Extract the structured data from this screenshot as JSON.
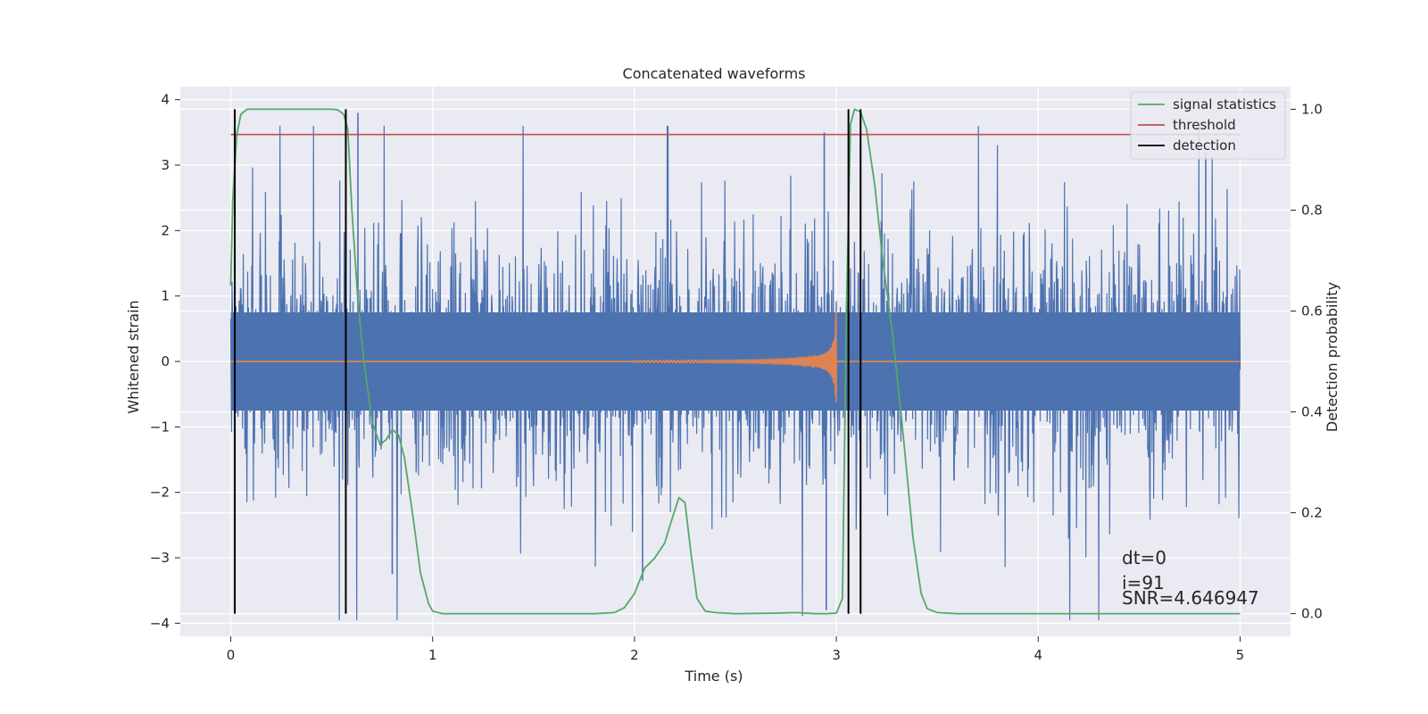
{
  "chart_data": {
    "type": "line",
    "title": "Concatenated waveforms",
    "xlabel": "Time (s)",
    "ylabel": "Whitened strain",
    "y2label": "Detection probability",
    "xlim": [
      -0.25,
      5.25
    ],
    "ylim": [
      -4.2,
      4.2
    ],
    "y2lim": [
      -0.045,
      1.045
    ],
    "grid": true,
    "legend_position": "top-right",
    "x_ticks": [
      0,
      1,
      2,
      3,
      4,
      5
    ],
    "y_ticks": [
      -4,
      -3,
      -2,
      -1,
      0,
      1,
      2,
      3,
      4
    ],
    "y2_ticks": [
      0.0,
      0.2,
      0.4,
      0.6,
      0.8,
      1.0
    ],
    "x_tick_labels": [
      "0",
      "1",
      "2",
      "3",
      "4",
      "5"
    ],
    "y_tick_labels": [
      "−4",
      "−3",
      "−2",
      "−1",
      "0",
      "1",
      "2",
      "3",
      "4"
    ],
    "y2_tick_labels": [
      "0.0",
      "0.2",
      "0.4",
      "0.6",
      "0.8",
      "1.0"
    ],
    "colors": {
      "strain": "#4c72b0",
      "injected": "#dd8452",
      "signal_statistics": "#55a868",
      "threshold": "#c44e52",
      "detection": "#000000",
      "axes_bg": "#eaeaf2",
      "grid": "#ffffff"
    },
    "series": [
      {
        "name": "",
        "description_key": "whitened-strain-noise",
        "x_range": [
          0,
          5
        ],
        "envelope": {
          "core_amplitude": 0.75,
          "peak_max": 3.8,
          "peak_min": -3.95
        },
        "notable_spikes": [
          {
            "x": 0.63,
            "y": 3.8
          },
          {
            "x": 0.8,
            "y": -3.25
          },
          {
            "x": 2.04,
            "y": -3.35
          },
          {
            "x": 2.94,
            "y": 3.5
          },
          {
            "x": 2.95,
            "y": -3.8
          },
          {
            "x": 4.83,
            "y": 3.2
          }
        ]
      },
      {
        "name": "",
        "description_key": "injected-chirp",
        "x_range": [
          0,
          5
        ],
        "chirp": {
          "start": 2.0,
          "end": 3.0,
          "peak_amplitude": 0.95
        }
      },
      {
        "name": "signal statistics",
        "axis": "right",
        "x": [
          0.0,
          0.01,
          0.03,
          0.05,
          0.08,
          0.12,
          0.2,
          0.3,
          0.4,
          0.5,
          0.53,
          0.56,
          0.58,
          0.6,
          0.63,
          0.66,
          0.7,
          0.74,
          0.77,
          0.8,
          0.83,
          0.86,
          0.9,
          0.94,
          0.98,
          1.0,
          1.05,
          1.2,
          1.5,
          1.8,
          1.9,
          1.95,
          2.0,
          2.05,
          2.1,
          2.15,
          2.18,
          2.22,
          2.25,
          2.28,
          2.31,
          2.35,
          2.4,
          2.5,
          2.7,
          2.8,
          2.9,
          2.95,
          3.0,
          3.03,
          3.05,
          3.07,
          3.09,
          3.12,
          3.15,
          3.19,
          3.23,
          3.28,
          3.33,
          3.38,
          3.42,
          3.45,
          3.5,
          3.6,
          4.0,
          4.5,
          5.0
        ],
        "y": [
          0.65,
          0.82,
          0.95,
          0.99,
          1.0,
          1.0,
          1.0,
          1.0,
          1.0,
          1.0,
          0.999,
          0.99,
          0.96,
          0.8,
          0.62,
          0.5,
          0.38,
          0.335,
          0.345,
          0.365,
          0.355,
          0.31,
          0.2,
          0.08,
          0.02,
          0.005,
          0.0,
          0.0,
          0.0,
          0.0,
          0.002,
          0.012,
          0.04,
          0.09,
          0.11,
          0.14,
          0.18,
          0.23,
          0.22,
          0.12,
          0.03,
          0.005,
          0.002,
          0.0,
          0.001,
          0.002,
          0.0,
          0.0,
          0.001,
          0.03,
          0.6,
          0.97,
          1.0,
          0.995,
          0.96,
          0.85,
          0.7,
          0.55,
          0.36,
          0.15,
          0.04,
          0.01,
          0.002,
          0.0,
          0.0,
          0.0,
          0.0
        ]
      },
      {
        "name": "threshold",
        "axis": "right",
        "x": [
          0,
          5
        ],
        "y": [
          0.95,
          0.95
        ]
      },
      {
        "name": "detection",
        "axis": "right",
        "type": "vlines",
        "x": [
          0.02,
          0.57,
          3.06,
          3.12
        ],
        "y_range": [
          0.0,
          1.0
        ]
      }
    ],
    "legend": [
      "signal statistics",
      "threshold",
      "detection"
    ],
    "annotations": [
      "dt=0",
      "i=91",
      "SNR=4.646947"
    ]
  }
}
